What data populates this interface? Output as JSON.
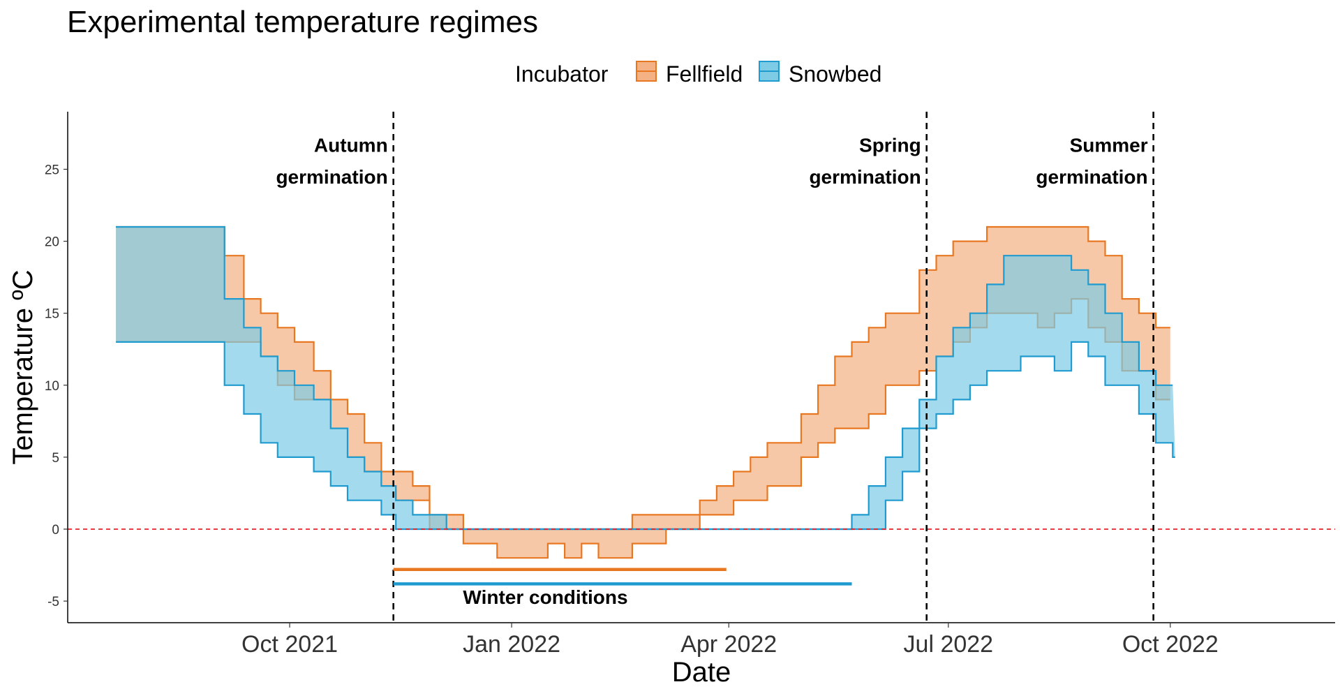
{
  "chart_data": {
    "type": "area",
    "title": "Experimental temperature regimes",
    "xlabel": "Date",
    "ylabel": "Temperature ºC",
    "xlim": [
      "2021-07-01",
      "2022-10-15"
    ],
    "ylim": [
      -6.5,
      29
    ],
    "x_ticks": [
      {
        "date": "2021-10-01",
        "label": "Oct 2021"
      },
      {
        "date": "2022-01-01",
        "label": "Jan 2022"
      },
      {
        "date": "2022-04-01",
        "label": "Apr 2022"
      },
      {
        "date": "2022-07-01",
        "label": "Jul 2022"
      },
      {
        "date": "2022-10-01",
        "label": "Oct 2022"
      }
    ],
    "y_ticks": [
      -5,
      0,
      5,
      10,
      15,
      20,
      25
    ],
    "grid": false,
    "legend": {
      "title": "Incubator",
      "position": "top"
    },
    "series": [
      {
        "name": "Fellfield",
        "color": "#E87722",
        "fill": "#F4B183",
        "max": [
          [
            "2021-07-21",
            21
          ],
          [
            "2021-09-04",
            19
          ],
          [
            "2021-09-12",
            16
          ],
          [
            "2021-09-19",
            15
          ],
          [
            "2021-09-26",
            14
          ],
          [
            "2021-10-03",
            13
          ],
          [
            "2021-10-11",
            11
          ],
          [
            "2021-10-18",
            9
          ],
          [
            "2021-10-25",
            8
          ],
          [
            "2021-11-01",
            6
          ],
          [
            "2021-11-08",
            4
          ],
          [
            "2021-11-21",
            3
          ],
          [
            "2021-11-28",
            1
          ],
          [
            "2021-12-12",
            0
          ],
          [
            "2022-02-20",
            1
          ],
          [
            "2022-03-13",
            1
          ],
          [
            "2022-03-20",
            2
          ],
          [
            "2022-03-27",
            3
          ],
          [
            "2022-04-03",
            4
          ],
          [
            "2022-04-10",
            5
          ],
          [
            "2022-04-17",
            6
          ],
          [
            "2022-04-24",
            6
          ],
          [
            "2022-05-01",
            8
          ],
          [
            "2022-05-08",
            10
          ],
          [
            "2022-05-15",
            12
          ],
          [
            "2022-05-22",
            13
          ],
          [
            "2022-05-29",
            14
          ],
          [
            "2022-06-05",
            15
          ],
          [
            "2022-06-19",
            18
          ],
          [
            "2022-06-26",
            19
          ],
          [
            "2022-07-03",
            20
          ],
          [
            "2022-07-17",
            21
          ],
          [
            "2022-08-28",
            20
          ],
          [
            "2022-09-04",
            19
          ],
          [
            "2022-09-11",
            16
          ],
          [
            "2022-09-18",
            15
          ],
          [
            "2022-09-25",
            14
          ],
          [
            "2022-10-01",
            14
          ]
        ],
        "min": [
          [
            "2021-07-21",
            13
          ],
          [
            "2021-09-19",
            12
          ],
          [
            "2021-09-26",
            10
          ],
          [
            "2021-10-03",
            9
          ],
          [
            "2021-10-18",
            7
          ],
          [
            "2021-10-25",
            5
          ],
          [
            "2021-11-01",
            4
          ],
          [
            "2021-11-08",
            3
          ],
          [
            "2021-11-14",
            2
          ],
          [
            "2021-11-28",
            0
          ],
          [
            "2021-12-12",
            -1
          ],
          [
            "2021-12-26",
            -2
          ],
          [
            "2022-01-16",
            -1
          ],
          [
            "2022-01-23",
            -2
          ],
          [
            "2022-01-30",
            -1
          ],
          [
            "2022-02-06",
            -2
          ],
          [
            "2022-02-20",
            -1
          ],
          [
            "2022-03-06",
            0
          ],
          [
            "2022-03-20",
            1
          ],
          [
            "2022-04-03",
            2
          ],
          [
            "2022-04-17",
            3
          ],
          [
            "2022-05-01",
            5
          ],
          [
            "2022-05-08",
            6
          ],
          [
            "2022-05-15",
            7
          ],
          [
            "2022-05-29",
            8
          ],
          [
            "2022-06-05",
            10
          ],
          [
            "2022-06-19",
            11
          ],
          [
            "2022-06-26",
            12
          ],
          [
            "2022-07-03",
            13
          ],
          [
            "2022-07-10",
            14
          ],
          [
            "2022-07-17",
            15
          ],
          [
            "2022-08-07",
            14
          ],
          [
            "2022-08-14",
            15
          ],
          [
            "2022-08-21",
            16
          ],
          [
            "2022-08-28",
            14
          ],
          [
            "2022-09-04",
            13
          ],
          [
            "2022-09-11",
            11
          ],
          [
            "2022-09-25",
            9
          ],
          [
            "2022-10-01",
            9
          ]
        ]
      },
      {
        "name": "Snowbed",
        "color": "#1F9BCF",
        "fill": "#7ECBE6",
        "max": [
          [
            "2021-07-21",
            21
          ],
          [
            "2021-09-04",
            16
          ],
          [
            "2021-09-12",
            14
          ],
          [
            "2021-09-19",
            12
          ],
          [
            "2021-09-26",
            11
          ],
          [
            "2021-10-03",
            10
          ],
          [
            "2021-10-11",
            9
          ],
          [
            "2021-10-18",
            7
          ],
          [
            "2021-10-25",
            5
          ],
          [
            "2021-11-01",
            4
          ],
          [
            "2021-11-08",
            3
          ],
          [
            "2021-11-14",
            2
          ],
          [
            "2021-11-21",
            1
          ],
          [
            "2021-12-05",
            0
          ],
          [
            "2022-05-22",
            1
          ],
          [
            "2022-05-29",
            3
          ],
          [
            "2022-06-05",
            5
          ],
          [
            "2022-06-12",
            7
          ],
          [
            "2022-06-19",
            9
          ],
          [
            "2022-06-26",
            12
          ],
          [
            "2022-07-03",
            14
          ],
          [
            "2022-07-10",
            15
          ],
          [
            "2022-07-17",
            17
          ],
          [
            "2022-07-24",
            19
          ],
          [
            "2022-08-21",
            18
          ],
          [
            "2022-08-28",
            17
          ],
          [
            "2022-09-04",
            15
          ],
          [
            "2022-09-11",
            13
          ],
          [
            "2022-09-18",
            11
          ],
          [
            "2022-09-25",
            10
          ],
          [
            "2022-10-02",
            10
          ]
        ],
        "min": [
          [
            "2021-07-21",
            13
          ],
          [
            "2021-09-04",
            10
          ],
          [
            "2021-09-12",
            8
          ],
          [
            "2021-09-19",
            6
          ],
          [
            "2021-09-26",
            5
          ],
          [
            "2021-10-11",
            4
          ],
          [
            "2021-10-18",
            3
          ],
          [
            "2021-10-25",
            2
          ],
          [
            "2021-11-08",
            1
          ],
          [
            "2021-11-14",
            0
          ],
          [
            "2022-06-05",
            2
          ],
          [
            "2022-06-12",
            4
          ],
          [
            "2022-06-19",
            7
          ],
          [
            "2022-06-26",
            8
          ],
          [
            "2022-07-03",
            9
          ],
          [
            "2022-07-10",
            10
          ],
          [
            "2022-07-17",
            11
          ],
          [
            "2022-07-31",
            12
          ],
          [
            "2022-08-14",
            11
          ],
          [
            "2022-08-21",
            13
          ],
          [
            "2022-08-28",
            12
          ],
          [
            "2022-09-04",
            10
          ],
          [
            "2022-09-18",
            8
          ],
          [
            "2022-09-25",
            6
          ],
          [
            "2022-10-02",
            5
          ],
          [
            "2022-10-03",
            5
          ]
        ]
      }
    ],
    "reference_lines": [
      {
        "axis": "y",
        "value": 0,
        "color": "#E8202A",
        "style": "dashed"
      },
      {
        "axis": "x",
        "value": "2021-11-13",
        "color": "#000000",
        "style": "dashed"
      },
      {
        "axis": "x",
        "value": "2022-06-22",
        "color": "#000000",
        "style": "dashed"
      },
      {
        "axis": "x",
        "value": "2022-09-24",
        "color": "#000000",
        "style": "dashed"
      }
    ],
    "segments": [
      {
        "x0": "2021-11-13",
        "x1": "2022-03-31",
        "y": -2.8,
        "color": "#E87722"
      },
      {
        "x0": "2021-11-13",
        "x1": "2022-05-22",
        "y": -3.8,
        "color": "#1F9BCF"
      }
    ],
    "annotations": [
      {
        "lines": [
          "Autumn",
          "germination"
        ],
        "x": "2021-11-13",
        "anchor": "end",
        "y": [
          26.2,
          24
        ]
      },
      {
        "lines": [
          "Spring",
          "germination"
        ],
        "x": "2022-06-22",
        "anchor": "end",
        "y": [
          26.2,
          24
        ]
      },
      {
        "lines": [
          "Summer",
          "germination"
        ],
        "x": "2022-09-24",
        "anchor": "end",
        "y": [
          26.2,
          24
        ]
      },
      {
        "lines": [
          "Winter conditions"
        ],
        "x": "2022-01-15",
        "anchor": "middle",
        "y": [
          -5.2
        ]
      }
    ]
  }
}
